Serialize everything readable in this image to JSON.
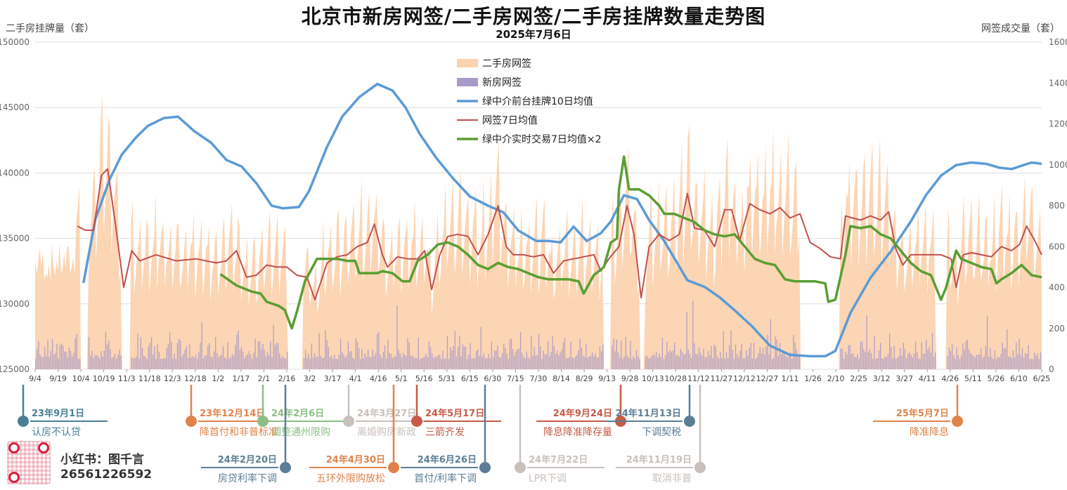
{
  "title": "北京市新房网签/二手房网签/二手房挂牌数量走势图",
  "subtitle": "2025年7月6日",
  "left_axis_title": "二手房挂牌量（套）",
  "right_axis_title": "网签成交量（套）",
  "brand": "小红书：图千言",
  "phone": "26561226592",
  "colors": {
    "secondhand_signing": "#fcd3b0",
    "new_signing": "#a89ac8",
    "listings": "#5b9bd5",
    "signing_ma7": "#c0504d",
    "realtime_ma7x2": "#5a9e32",
    "grid": "#dddddd"
  },
  "chart_data": {
    "type": "line",
    "x_tick_labels": [
      "9/4",
      "9/19",
      "10/4",
      "10/19",
      "11/3",
      "11/18",
      "12/3",
      "12/18",
      "1/2",
      "1/17",
      "2/1",
      "2/16",
      "3/2",
      "3/17",
      "4/1",
      "4/16",
      "5/1",
      "5/16",
      "5/31",
      "6/15",
      "6/30",
      "7/15",
      "7/30",
      "8/14",
      "8/29",
      "9/13",
      "9/28",
      "10/13",
      "10/28",
      "11/12",
      "11/27",
      "12/12",
      "12/27",
      "1/11",
      "1/26",
      "2/10",
      "2/25",
      "3/12",
      "3/27",
      "4/11",
      "4/26",
      "5/11",
      "5/26",
      "6/10",
      "6/25"
    ],
    "y_left": {
      "min": 125000,
      "max": 150000,
      "ticks": [
        125000,
        130000,
        135000,
        140000,
        145000,
        150000
      ]
    },
    "y_right": {
      "min": 0,
      "max": 1600,
      "ticks": [
        0,
        200,
        400,
        600,
        800,
        1000,
        1200,
        1400,
        1600
      ]
    },
    "legend": [
      "二手房网签",
      "新房网签",
      "绿中介前台挂牌10日均值",
      "网签7日均值",
      "绿中介实时交易7日均值×2"
    ],
    "legend_position": "top-center",
    "grid": true,
    "series": [
      {
        "name": "绿中介前台挂牌10日均值",
        "axis": "left",
        "color": "#5b9bd5",
        "points": [
          [
            0.048,
            131600
          ],
          [
            0.06,
            136500
          ],
          [
            0.074,
            139500
          ],
          [
            0.086,
            141400
          ],
          [
            0.1,
            142700
          ],
          [
            0.112,
            143600
          ],
          [
            0.128,
            144200
          ],
          [
            0.142,
            144300
          ],
          [
            0.158,
            143200
          ],
          [
            0.175,
            142300
          ],
          [
            0.19,
            141000
          ],
          [
            0.205,
            140500
          ],
          [
            0.22,
            139200
          ],
          [
            0.235,
            137500
          ],
          [
            0.246,
            137300
          ],
          [
            0.262,
            137400
          ],
          [
            0.272,
            138600
          ],
          [
            0.29,
            142000
          ],
          [
            0.305,
            144300
          ],
          [
            0.322,
            145800
          ],
          [
            0.34,
            146800
          ],
          [
            0.355,
            146300
          ],
          [
            0.368,
            145000
          ],
          [
            0.382,
            143000
          ],
          [
            0.398,
            141200
          ],
          [
            0.415,
            139600
          ],
          [
            0.432,
            138200
          ],
          [
            0.45,
            137500
          ],
          [
            0.465,
            137000
          ],
          [
            0.48,
            135600
          ],
          [
            0.498,
            134800
          ],
          [
            0.51,
            134800
          ],
          [
            0.522,
            134700
          ],
          [
            0.535,
            135900
          ],
          [
            0.548,
            134800
          ],
          [
            0.562,
            135400
          ],
          [
            0.572,
            136300
          ],
          [
            0.585,
            138300
          ],
          [
            0.598,
            138000
          ],
          [
            0.61,
            136400
          ],
          [
            0.625,
            134800
          ],
          [
            0.635,
            133500
          ],
          [
            0.648,
            131800
          ],
          [
            0.665,
            131300
          ],
          [
            0.68,
            130500
          ],
          [
            0.695,
            129500
          ],
          [
            0.712,
            128300
          ],
          [
            0.73,
            126800
          ],
          [
            0.75,
            126100
          ],
          [
            0.77,
            126000
          ],
          [
            0.785,
            126000
          ],
          [
            0.795,
            126400
          ],
          [
            0.81,
            129300
          ],
          [
            0.83,
            132000
          ],
          [
            0.85,
            134000
          ],
          [
            0.87,
            136300
          ],
          [
            0.885,
            138300
          ],
          [
            0.9,
            139800
          ],
          [
            0.915,
            140600
          ],
          [
            0.93,
            140800
          ],
          [
            0.945,
            140700
          ],
          [
            0.958,
            140400
          ],
          [
            0.97,
            140300
          ],
          [
            0.982,
            140600
          ],
          [
            0.99,
            140800
          ],
          [
            1.0,
            140700
          ]
        ]
      },
      {
        "name": "网签7日均值",
        "axis": "right",
        "color": "#c0504d",
        "points": [
          [
            0.042,
            700
          ],
          [
            0.05,
            680
          ],
          [
            0.058,
            680
          ],
          [
            0.066,
            950
          ],
          [
            0.072,
            980
          ],
          [
            0.08,
            700
          ],
          [
            0.088,
            400
          ],
          [
            0.096,
            580
          ],
          [
            0.104,
            530
          ],
          [
            0.12,
            560
          ],
          [
            0.14,
            530
          ],
          [
            0.16,
            540
          ],
          [
            0.18,
            520
          ],
          [
            0.19,
            530
          ],
          [
            0.2,
            580
          ],
          [
            0.21,
            450
          ],
          [
            0.22,
            460
          ],
          [
            0.23,
            510
          ],
          [
            0.24,
            500
          ],
          [
            0.25,
            500
          ],
          [
            0.26,
            460
          ],
          [
            0.27,
            450
          ],
          [
            0.278,
            340
          ],
          [
            0.29,
            520
          ],
          [
            0.3,
            550
          ],
          [
            0.31,
            560
          ],
          [
            0.32,
            600
          ],
          [
            0.33,
            620
          ],
          [
            0.337,
            710
          ],
          [
            0.345,
            560
          ],
          [
            0.35,
            500
          ],
          [
            0.36,
            550
          ],
          [
            0.37,
            540
          ],
          [
            0.38,
            540
          ],
          [
            0.387,
            580
          ],
          [
            0.394,
            390
          ],
          [
            0.402,
            560
          ],
          [
            0.41,
            650
          ],
          [
            0.42,
            660
          ],
          [
            0.43,
            650
          ],
          [
            0.44,
            560
          ],
          [
            0.45,
            660
          ],
          [
            0.46,
            800
          ],
          [
            0.468,
            600
          ],
          [
            0.475,
            560
          ],
          [
            0.485,
            560
          ],
          [
            0.495,
            550
          ],
          [
            0.505,
            560
          ],
          [
            0.515,
            470
          ],
          [
            0.525,
            530
          ],
          [
            0.535,
            540
          ],
          [
            0.545,
            550
          ],
          [
            0.555,
            560
          ],
          [
            0.562,
            480
          ],
          [
            0.57,
            540
          ],
          [
            0.58,
            600
          ],
          [
            0.588,
            800
          ],
          [
            0.595,
            660
          ],
          [
            0.602,
            350
          ],
          [
            0.61,
            600
          ],
          [
            0.62,
            660
          ],
          [
            0.63,
            630
          ],
          [
            0.64,
            660
          ],
          [
            0.648,
            860
          ],
          [
            0.655,
            690
          ],
          [
            0.665,
            680
          ],
          [
            0.675,
            600
          ],
          [
            0.685,
            780
          ],
          [
            0.692,
            780
          ],
          [
            0.7,
            630
          ],
          [
            0.71,
            810
          ],
          [
            0.72,
            780
          ],
          [
            0.73,
            760
          ],
          [
            0.74,
            790
          ],
          [
            0.75,
            740
          ],
          [
            0.76,
            760
          ],
          [
            0.77,
            620
          ],
          [
            0.78,
            590
          ],
          [
            0.79,
            550
          ],
          [
            0.8,
            540
          ],
          [
            0.805,
            750
          ],
          [
            0.812,
            740
          ],
          [
            0.82,
            730
          ],
          [
            0.83,
            750
          ],
          [
            0.84,
            730
          ],
          [
            0.848,
            770
          ],
          [
            0.855,
            590
          ],
          [
            0.862,
            510
          ],
          [
            0.87,
            560
          ],
          [
            0.88,
            560
          ],
          [
            0.89,
            560
          ],
          [
            0.9,
            560
          ],
          [
            0.91,
            540
          ],
          [
            0.915,
            400
          ],
          [
            0.922,
            560
          ],
          [
            0.93,
            570
          ],
          [
            0.94,
            560
          ],
          [
            0.95,
            550
          ],
          [
            0.96,
            600
          ],
          [
            0.97,
            580
          ],
          [
            0.978,
            610
          ],
          [
            0.985,
            700
          ],
          [
            0.992,
            640
          ],
          [
            1.0,
            560
          ]
        ]
      },
      {
        "name": "绿中介实时交易7日均值×2",
        "axis": "right",
        "color": "#5a9e32",
        "points": [
          [
            0.184,
            465
          ],
          [
            0.2,
            410
          ],
          [
            0.215,
            380
          ],
          [
            0.224,
            370
          ],
          [
            0.23,
            330
          ],
          [
            0.242,
            310
          ],
          [
            0.248,
            290
          ],
          [
            0.255,
            200
          ],
          [
            0.26,
            280
          ],
          [
            0.268,
            430
          ],
          [
            0.28,
            540
          ],
          [
            0.29,
            540
          ],
          [
            0.3,
            540
          ],
          [
            0.31,
            530
          ],
          [
            0.318,
            530
          ],
          [
            0.322,
            470
          ],
          [
            0.33,
            470
          ],
          [
            0.34,
            470
          ],
          [
            0.345,
            480
          ],
          [
            0.355,
            470
          ],
          [
            0.365,
            430
          ],
          [
            0.372,
            430
          ],
          [
            0.38,
            530
          ],
          [
            0.39,
            560
          ],
          [
            0.4,
            610
          ],
          [
            0.41,
            620
          ],
          [
            0.42,
            600
          ],
          [
            0.43,
            560
          ],
          [
            0.44,
            510
          ],
          [
            0.45,
            490
          ],
          [
            0.46,
            520
          ],
          [
            0.47,
            500
          ],
          [
            0.48,
            490
          ],
          [
            0.49,
            470
          ],
          [
            0.5,
            450
          ],
          [
            0.51,
            440
          ],
          [
            0.52,
            440
          ],
          [
            0.53,
            440
          ],
          [
            0.54,
            430
          ],
          [
            0.545,
            370
          ],
          [
            0.555,
            460
          ],
          [
            0.565,
            500
          ],
          [
            0.572,
            620
          ],
          [
            0.578,
            640
          ],
          [
            0.58,
            880
          ],
          [
            0.585,
            1040
          ],
          [
            0.59,
            880
          ],
          [
            0.6,
            880
          ],
          [
            0.61,
            850
          ],
          [
            0.62,
            800
          ],
          [
            0.625,
            760
          ],
          [
            0.635,
            760
          ],
          [
            0.645,
            740
          ],
          [
            0.655,
            720
          ],
          [
            0.665,
            680
          ],
          [
            0.675,
            660
          ],
          [
            0.685,
            650
          ],
          [
            0.695,
            660
          ],
          [
            0.705,
            600
          ],
          [
            0.715,
            540
          ],
          [
            0.725,
            520
          ],
          [
            0.735,
            510
          ],
          [
            0.745,
            440
          ],
          [
            0.755,
            430
          ],
          [
            0.765,
            430
          ],
          [
            0.775,
            430
          ],
          [
            0.785,
            420
          ],
          [
            0.788,
            330
          ],
          [
            0.795,
            340
          ],
          [
            0.805,
            560
          ],
          [
            0.81,
            700
          ],
          [
            0.82,
            690
          ],
          [
            0.83,
            700
          ],
          [
            0.84,
            660
          ],
          [
            0.85,
            640
          ],
          [
            0.86,
            580
          ],
          [
            0.87,
            520
          ],
          [
            0.88,
            480
          ],
          [
            0.89,
            460
          ],
          [
            0.895,
            400
          ],
          [
            0.9,
            340
          ],
          [
            0.905,
            400
          ],
          [
            0.915,
            580
          ],
          [
            0.92,
            540
          ],
          [
            0.93,
            520
          ],
          [
            0.94,
            500
          ],
          [
            0.95,
            490
          ],
          [
            0.955,
            420
          ],
          [
            0.96,
            440
          ],
          [
            0.97,
            470
          ],
          [
            0.98,
            510
          ],
          [
            0.99,
            460
          ],
          [
            1.0,
            450
          ]
        ]
      }
    ],
    "bar_series": [
      {
        "name": "二手房网签",
        "axis": "right",
        "color": "#fcd3b0",
        "style": "area"
      },
      {
        "name": "新房网签",
        "axis": "right",
        "color": "#a89ac8",
        "style": "bars"
      }
    ],
    "annotations": [
      {
        "date": "23年9月1日",
        "label": "认房不认贷",
        "color": "#4a7f95"
      },
      {
        "date": "23年12月14日",
        "label": "降首付和非普标准",
        "color": "#e0834a"
      },
      {
        "date": "24年2月6日",
        "label": "调整通州限购",
        "color": "#8cbf85"
      },
      {
        "date": "24年2月20日",
        "label": "房贷利率下调",
        "color": "#5b7e94"
      },
      {
        "date": "24年3月27日",
        "label": "离婚购房新政",
        "color": "#c9c0bb"
      },
      {
        "date": "24年4月30日",
        "label": "五环外限购放松",
        "color": "#e0834a"
      },
      {
        "date": "24年5月17日",
        "label": "三箭齐发",
        "color": "#c65b48"
      },
      {
        "date": "24年6月26日",
        "label": "首付/利率下调",
        "color": "#5b7e94"
      },
      {
        "date": "24年7月22日",
        "label": "LPR下调",
        "color": "#c9c0bb"
      },
      {
        "date": "24年9月24日",
        "label": "降息降准降存量",
        "color": "#c65b48"
      },
      {
        "date": "24年11月13日",
        "label": "下调契税",
        "color": "#5b7e94"
      },
      {
        "date": "24年11月19日",
        "label": "取消非普",
        "color": "#c9c0bb"
      },
      {
        "date": "25年5月7日",
        "label": "降准降息",
        "color": "#e0834a"
      }
    ]
  }
}
